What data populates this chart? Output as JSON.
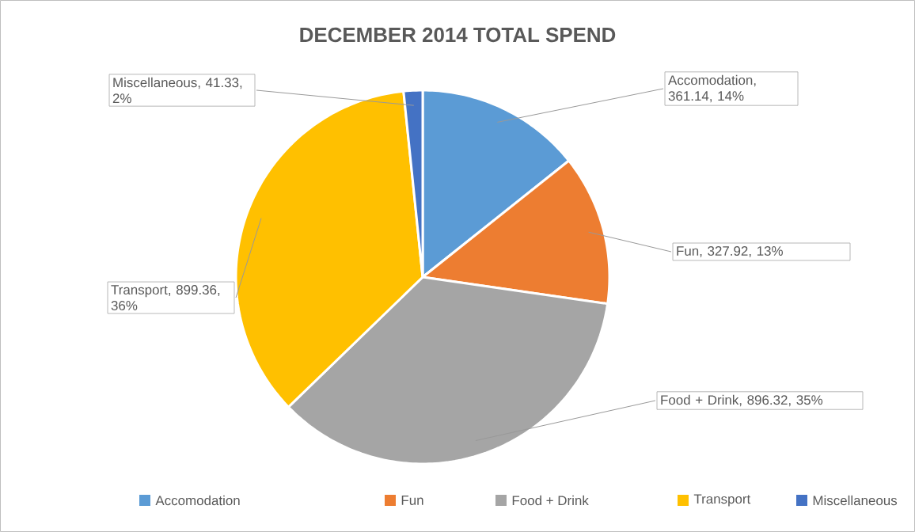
{
  "chart_data": {
    "type": "pie",
    "title": "DECEMBER 2014 TOTAL SPEND",
    "categories": [
      "Accomodation",
      "Fun",
      "Food + Drink",
      "Transport",
      "Miscellaneous"
    ],
    "values": [
      361.14,
      327.92,
      896.32,
      899.36,
      41.33
    ],
    "colors": [
      "#5b9bd5",
      "#ed7d31",
      "#a5a5a5",
      "#ffc000",
      "#4472c4"
    ],
    "value_labels": [
      "Accomodation, 361.14, 14%",
      "Fun, 327.92, 13%",
      "Food + Drink, 896.32, 35%",
      "Transport, 899.36, 36%",
      "Miscellaneous, 41.33, 2%"
    ],
    "legend": "bottom"
  }
}
